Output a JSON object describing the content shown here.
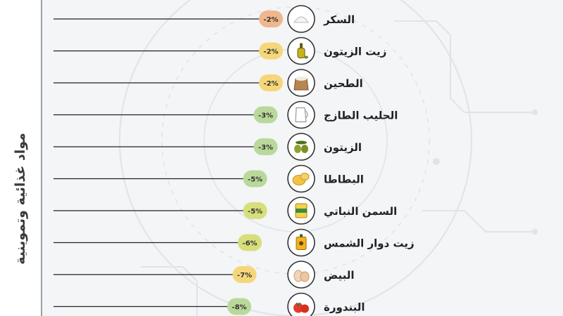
{
  "section_title": "مواد غذائية وتموينية",
  "colors": {
    "background": "#f3f5f7",
    "line": "#222222",
    "circle_stroke": "#333333",
    "badge_small_drop": "#f5c070",
    "badge_mid_drop": "#b9d99a",
    "badge_large_drop": "#d6df7a",
    "badge_sugar": "#f0b68c"
  },
  "chart_data": {
    "type": "bar",
    "orientation": "horizontal",
    "unit": "%",
    "categories": [
      "السكر",
      "زيت الزيتون",
      "الطحين",
      "الحليب الطازج",
      "الزيتون",
      "البطاطا",
      "السمن النباتي",
      "زيت دوار الشمس",
      "البيض",
      "البندورة"
    ],
    "values": [
      -2,
      -2,
      -2,
      -3,
      -3,
      -5,
      -5,
      -6,
      -7,
      -8
    ],
    "labels": [
      "-2%",
      "-2%",
      "-2%",
      "-3%",
      "-3%",
      "-5%",
      "-5%",
      "-6%",
      "-7%",
      "-8%"
    ],
    "icons": [
      "sugar-icon",
      "olive-oil-icon",
      "flour-sack-icon",
      "milk-jug-icon",
      "olives-icon",
      "potatoes-icon",
      "ghee-tin-icon",
      "sunflower-oil-icon",
      "eggs-icon",
      "tomatoes-icon"
    ],
    "badge_colors": [
      "#f0b68c",
      "#f5d77a",
      "#f5d77a",
      "#b9d99a",
      "#b9d99a",
      "#b9d99a",
      "#d6df7a",
      "#d6df7a",
      "#f5d77a",
      "#b9d99a"
    ],
    "grid": false,
    "legend": "none"
  }
}
